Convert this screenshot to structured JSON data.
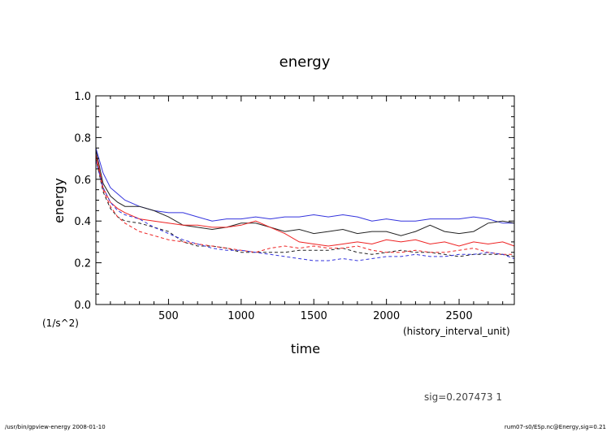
{
  "chart_data": {
    "type": "line",
    "title": "energy",
    "xlabel": "time",
    "xunit": "(history_interval_unit)",
    "ylabel": "energy",
    "yunit": "(1/s^2)",
    "xlim": [
      0,
      2880
    ],
    "ylim": [
      0,
      1.0
    ],
    "xticks": [
      {
        "value": 500,
        "label": "500"
      },
      {
        "value": 1000,
        "label": "1000"
      },
      {
        "value": 1500,
        "label": "1500"
      },
      {
        "value": 2000,
        "label": "2000"
      },
      {
        "value": 2500,
        "label": "2500"
      }
    ],
    "yticks": [
      {
        "value": 0.0,
        "label": "0.0"
      },
      {
        "value": 0.2,
        "label": "0.2"
      },
      {
        "value": 0.4,
        "label": "0.4"
      },
      {
        "value": 0.6,
        "label": "0.6"
      },
      {
        "value": 0.8,
        "label": "0.8"
      },
      {
        "value": 1.0,
        "label": "1.0"
      }
    ],
    "series": [
      {
        "name": "blue-solid",
        "color": "#3333dd",
        "dash": "solid",
        "points": [
          [
            0,
            0.75
          ],
          [
            50,
            0.63
          ],
          [
            100,
            0.56
          ],
          [
            150,
            0.53
          ],
          [
            200,
            0.5
          ],
          [
            300,
            0.47
          ],
          [
            400,
            0.45
          ],
          [
            500,
            0.44
          ],
          [
            600,
            0.44
          ],
          [
            700,
            0.42
          ],
          [
            800,
            0.4
          ],
          [
            900,
            0.41
          ],
          [
            1000,
            0.41
          ],
          [
            1100,
            0.42
          ],
          [
            1200,
            0.41
          ],
          [
            1300,
            0.42
          ],
          [
            1400,
            0.42
          ],
          [
            1500,
            0.43
          ],
          [
            1600,
            0.42
          ],
          [
            1700,
            0.43
          ],
          [
            1800,
            0.42
          ],
          [
            1900,
            0.4
          ],
          [
            2000,
            0.41
          ],
          [
            2100,
            0.4
          ],
          [
            2200,
            0.4
          ],
          [
            2300,
            0.41
          ],
          [
            2400,
            0.41
          ],
          [
            2500,
            0.41
          ],
          [
            2600,
            0.42
          ],
          [
            2700,
            0.41
          ],
          [
            2800,
            0.39
          ],
          [
            2880,
            0.39
          ]
        ]
      },
      {
        "name": "black-solid",
        "color": "#222222",
        "dash": "solid",
        "points": [
          [
            0,
            0.74
          ],
          [
            50,
            0.58
          ],
          [
            100,
            0.52
          ],
          [
            150,
            0.49
          ],
          [
            200,
            0.47
          ],
          [
            300,
            0.47
          ],
          [
            400,
            0.45
          ],
          [
            500,
            0.42
          ],
          [
            600,
            0.38
          ],
          [
            700,
            0.37
          ],
          [
            800,
            0.36
          ],
          [
            900,
            0.37
          ],
          [
            1000,
            0.39
          ],
          [
            1100,
            0.39
          ],
          [
            1200,
            0.37
          ],
          [
            1300,
            0.35
          ],
          [
            1400,
            0.36
          ],
          [
            1500,
            0.34
          ],
          [
            1600,
            0.35
          ],
          [
            1700,
            0.36
          ],
          [
            1800,
            0.34
          ],
          [
            1900,
            0.35
          ],
          [
            2000,
            0.35
          ],
          [
            2100,
            0.33
          ],
          [
            2200,
            0.35
          ],
          [
            2300,
            0.38
          ],
          [
            2400,
            0.35
          ],
          [
            2500,
            0.34
          ],
          [
            2600,
            0.35
          ],
          [
            2700,
            0.39
          ],
          [
            2800,
            0.4
          ],
          [
            2880,
            0.39
          ]
        ]
      },
      {
        "name": "red-solid",
        "color": "#ee2222",
        "dash": "solid",
        "points": [
          [
            0,
            0.72
          ],
          [
            50,
            0.56
          ],
          [
            100,
            0.49
          ],
          [
            150,
            0.46
          ],
          [
            200,
            0.44
          ],
          [
            300,
            0.41
          ],
          [
            400,
            0.4
          ],
          [
            500,
            0.39
          ],
          [
            600,
            0.38
          ],
          [
            700,
            0.38
          ],
          [
            800,
            0.37
          ],
          [
            900,
            0.37
          ],
          [
            1000,
            0.38
          ],
          [
            1100,
            0.4
          ],
          [
            1200,
            0.37
          ],
          [
            1300,
            0.34
          ],
          [
            1400,
            0.3
          ],
          [
            1500,
            0.29
          ],
          [
            1600,
            0.28
          ],
          [
            1700,
            0.29
          ],
          [
            1800,
            0.3
          ],
          [
            1900,
            0.29
          ],
          [
            2000,
            0.31
          ],
          [
            2100,
            0.3
          ],
          [
            2200,
            0.31
          ],
          [
            2300,
            0.29
          ],
          [
            2400,
            0.3
          ],
          [
            2500,
            0.28
          ],
          [
            2600,
            0.3
          ],
          [
            2700,
            0.29
          ],
          [
            2800,
            0.3
          ],
          [
            2880,
            0.28
          ]
        ]
      },
      {
        "name": "black-dashed",
        "color": "#222222",
        "dash": "dashed",
        "points": [
          [
            0,
            0.7
          ],
          [
            50,
            0.54
          ],
          [
            100,
            0.46
          ],
          [
            150,
            0.42
          ],
          [
            200,
            0.4
          ],
          [
            300,
            0.39
          ],
          [
            400,
            0.37
          ],
          [
            500,
            0.35
          ],
          [
            600,
            0.3
          ],
          [
            700,
            0.28
          ],
          [
            800,
            0.28
          ],
          [
            900,
            0.27
          ],
          [
            1000,
            0.25
          ],
          [
            1100,
            0.25
          ],
          [
            1200,
            0.25
          ],
          [
            1300,
            0.25
          ],
          [
            1400,
            0.26
          ],
          [
            1500,
            0.26
          ],
          [
            1600,
            0.26
          ],
          [
            1700,
            0.27
          ],
          [
            1800,
            0.25
          ],
          [
            1900,
            0.24
          ],
          [
            2000,
            0.25
          ],
          [
            2100,
            0.26
          ],
          [
            2200,
            0.25
          ],
          [
            2300,
            0.25
          ],
          [
            2400,
            0.24
          ],
          [
            2500,
            0.23
          ],
          [
            2600,
            0.24
          ],
          [
            2700,
            0.24
          ],
          [
            2800,
            0.24
          ],
          [
            2880,
            0.23
          ]
        ]
      },
      {
        "name": "red-dashed",
        "color": "#ee2222",
        "dash": "dashed",
        "points": [
          [
            0,
            0.71
          ],
          [
            50,
            0.55
          ],
          [
            100,
            0.47
          ],
          [
            150,
            0.42
          ],
          [
            200,
            0.39
          ],
          [
            300,
            0.35
          ],
          [
            400,
            0.33
          ],
          [
            500,
            0.31
          ],
          [
            600,
            0.3
          ],
          [
            700,
            0.29
          ],
          [
            800,
            0.28
          ],
          [
            900,
            0.27
          ],
          [
            1000,
            0.26
          ],
          [
            1100,
            0.25
          ],
          [
            1200,
            0.27
          ],
          [
            1300,
            0.28
          ],
          [
            1400,
            0.27
          ],
          [
            1500,
            0.28
          ],
          [
            1600,
            0.27
          ],
          [
            1700,
            0.27
          ],
          [
            1800,
            0.28
          ],
          [
            1900,
            0.26
          ],
          [
            2000,
            0.25
          ],
          [
            2100,
            0.25
          ],
          [
            2200,
            0.26
          ],
          [
            2300,
            0.25
          ],
          [
            2400,
            0.25
          ],
          [
            2500,
            0.26
          ],
          [
            2600,
            0.27
          ],
          [
            2700,
            0.25
          ],
          [
            2800,
            0.24
          ],
          [
            2880,
            0.24
          ]
        ]
      },
      {
        "name": "blue-dashed",
        "color": "#3333dd",
        "dash": "dashed",
        "points": [
          [
            0,
            0.69
          ],
          [
            50,
            0.56
          ],
          [
            100,
            0.49
          ],
          [
            150,
            0.45
          ],
          [
            200,
            0.43
          ],
          [
            300,
            0.41
          ],
          [
            400,
            0.37
          ],
          [
            500,
            0.34
          ],
          [
            600,
            0.31
          ],
          [
            700,
            0.29
          ],
          [
            800,
            0.27
          ],
          [
            900,
            0.26
          ],
          [
            1000,
            0.26
          ],
          [
            1100,
            0.25
          ],
          [
            1200,
            0.24
          ],
          [
            1300,
            0.23
          ],
          [
            1400,
            0.22
          ],
          [
            1500,
            0.21
          ],
          [
            1600,
            0.21
          ],
          [
            1700,
            0.22
          ],
          [
            1800,
            0.21
          ],
          [
            1900,
            0.22
          ],
          [
            2000,
            0.23
          ],
          [
            2100,
            0.23
          ],
          [
            2200,
            0.24
          ],
          [
            2300,
            0.23
          ],
          [
            2400,
            0.23
          ],
          [
            2500,
            0.24
          ],
          [
            2600,
            0.24
          ],
          [
            2700,
            0.25
          ],
          [
            2800,
            0.24
          ],
          [
            2880,
            0.22
          ]
        ]
      }
    ]
  },
  "footer": {
    "sig": "sig=0.207473 1",
    "left_note": "/usr/bin/gpview-energy  2008-01-10",
    "right_note": "rum07-s0/ESp.nc@Energy,sig=0.21"
  }
}
